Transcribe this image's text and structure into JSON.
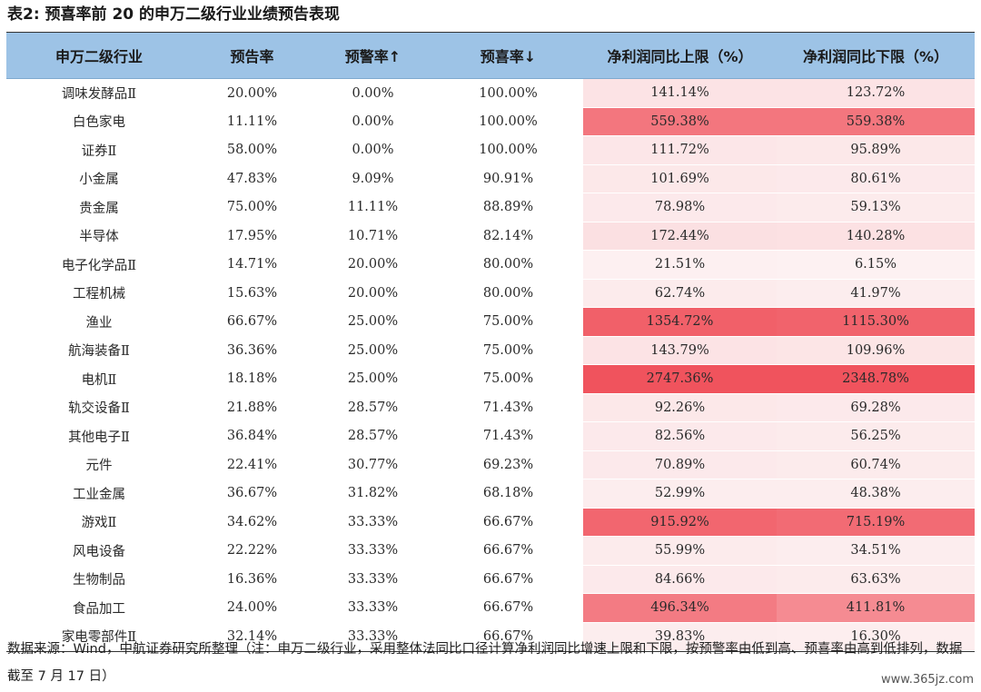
{
  "title": "表2: 预喜率前 20 的申万二级行业业绩预告表现",
  "headers": [
    "申万二级行业",
    "预告率",
    "预警率↑",
    "预喜率↓",
    "净利润同比上限（%）",
    "净利润同比下限（%）"
  ],
  "rows": [
    [
      "调味发酵品Ⅱ",
      "20.00%",
      "0.00%",
      "100.00%",
      "141.14%",
      "123.72%"
    ],
    [
      "白色家电",
      "11.11%",
      "0.00%",
      "100.00%",
      "559.38%",
      "559.38%"
    ],
    [
      "证券Ⅱ",
      "58.00%",
      "0.00%",
      "100.00%",
      "111.72%",
      "95.89%"
    ],
    [
      "小金属",
      "47.83%",
      "9.09%",
      "90.91%",
      "101.69%",
      "80.61%"
    ],
    [
      "贵金属",
      "75.00%",
      "11.11%",
      "88.89%",
      "78.98%",
      "59.13%"
    ],
    [
      "半导体",
      "17.95%",
      "10.71%",
      "82.14%",
      "172.44%",
      "140.28%"
    ],
    [
      "电子化学品Ⅱ",
      "14.71%",
      "20.00%",
      "80.00%",
      "21.51%",
      "6.15%"
    ],
    [
      "工程机械",
      "15.63%",
      "20.00%",
      "80.00%",
      "62.74%",
      "41.97%"
    ],
    [
      "渔业",
      "66.67%",
      "25.00%",
      "75.00%",
      "1354.72%",
      "1115.30%"
    ],
    [
      "航海装备Ⅱ",
      "36.36%",
      "25.00%",
      "75.00%",
      "143.79%",
      "109.96%"
    ],
    [
      "电机Ⅱ",
      "18.18%",
      "25.00%",
      "75.00%",
      "2747.36%",
      "2348.78%"
    ],
    [
      "轨交设备Ⅱ",
      "21.88%",
      "28.57%",
      "71.43%",
      "92.26%",
      "69.28%"
    ],
    [
      "其他电子Ⅱ",
      "36.84%",
      "28.57%",
      "71.43%",
      "82.56%",
      "56.25%"
    ],
    [
      "元件",
      "22.41%",
      "30.77%",
      "69.23%",
      "70.89%",
      "60.74%"
    ],
    [
      "工业金属",
      "36.67%",
      "31.82%",
      "68.18%",
      "52.99%",
      "48.38%"
    ],
    [
      "游戏Ⅱ",
      "34.62%",
      "33.33%",
      "66.67%",
      "915.92%",
      "715.19%"
    ],
    [
      "风电设备",
      "22.22%",
      "33.33%",
      "66.67%",
      "55.99%",
      "34.51%"
    ],
    [
      "生物制品",
      "16.36%",
      "33.33%",
      "66.67%",
      "84.66%",
      "63.63%"
    ],
    [
      "食品加工",
      "24.00%",
      "33.33%",
      "66.67%",
      "496.34%",
      "411.81%"
    ],
    [
      "家电零部件Ⅱ",
      "32.14%",
      "33.33%",
      "66.67%",
      "39.83%",
      "16.30%"
    ]
  ],
  "heat_levels": [
    [
      0.1,
      0.1
    ],
    [
      0.78,
      0.78
    ],
    [
      0.08,
      0.07
    ],
    [
      0.07,
      0.06
    ],
    [
      0.06,
      0.05
    ],
    [
      0.12,
      0.11
    ],
    [
      0.02,
      0.01
    ],
    [
      0.05,
      0.04
    ],
    [
      0.92,
      0.9
    ],
    [
      0.1,
      0.09
    ],
    [
      1.0,
      1.0
    ],
    [
      0.07,
      0.06
    ],
    [
      0.06,
      0.05
    ],
    [
      0.06,
      0.05
    ],
    [
      0.04,
      0.04
    ],
    [
      0.88,
      0.85
    ],
    [
      0.05,
      0.04
    ],
    [
      0.06,
      0.05
    ],
    [
      0.75,
      0.65
    ],
    [
      0.04,
      0.03
    ]
  ],
  "colors": {
    "header_bg": "#9dc3e6",
    "heat_low": "#fdf3f4",
    "heat_high": "#f0535d"
  },
  "source_note": "数据来源：Wind，中航证券研究所整理（注：申万二级行业，采用整体法同比口径计算净利润同比增速上限和下限，按预警率由低到高、预喜率由高到低排列，数据截至 7 月 17 日）",
  "watermark": "www.365jz.com"
}
